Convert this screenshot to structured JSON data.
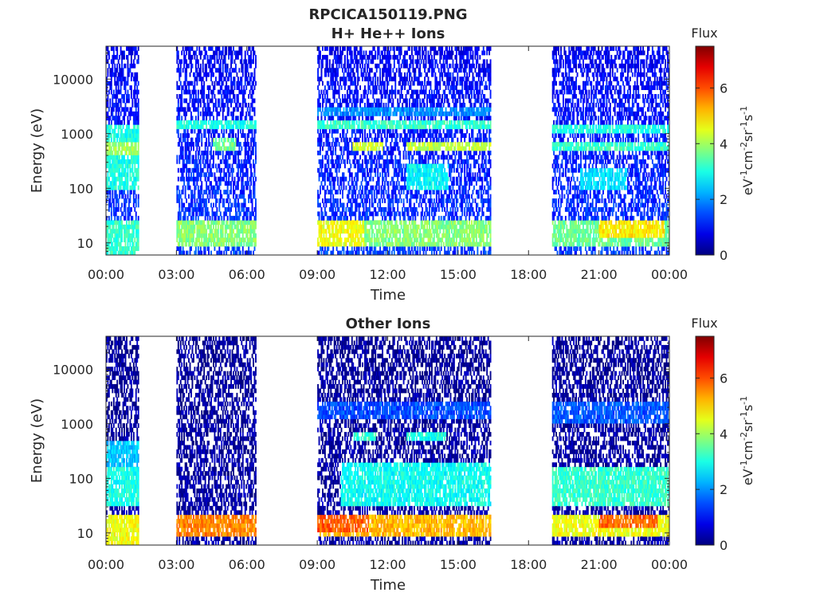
{
  "figure": {
    "file_title": "RPCICA150119.PNG"
  },
  "colorbar": {
    "title": "Flux",
    "unit_label": "eV-1cm-2sr-1s-1",
    "range": [
      0,
      7.5
    ],
    "ticks": [
      "0",
      "2",
      "4",
      "6"
    ],
    "colormap": "jet"
  },
  "chart_data": [
    {
      "type": "heatmap",
      "title": "H+ He++ Ions",
      "xlabel": "Time",
      "ylabel": "Energy (eV)",
      "xticks": [
        "00:00",
        "03:00",
        "06:00",
        "09:00",
        "12:00",
        "15:00",
        "18:00",
        "21:00",
        "00:00"
      ],
      "xlim_hours": [
        0,
        24
      ],
      "yscale": "log",
      "ylim": [
        6,
        40000
      ],
      "yticks": [
        "10",
        "100",
        "1000",
        "10000"
      ],
      "colorbar_range": [
        0,
        7.5
      ],
      "data_intervals_hours": [
        [
          0.0,
          1.4
        ],
        [
          3.0,
          6.4
        ],
        [
          9.0,
          16.4
        ],
        [
          19.0,
          24.0
        ]
      ],
      "bands": [
        {
          "t": [
            0.0,
            1.4
          ],
          "e": [
            100,
            1500
          ],
          "flux": 3.0
        },
        {
          "t": [
            0.0,
            1.4
          ],
          "e": [
            400,
            700
          ],
          "flux": 4.0
        },
        {
          "t": [
            0.0,
            1.4
          ],
          "e": [
            6,
            25
          ],
          "flux": 3.2
        },
        {
          "t": [
            3.0,
            6.4
          ],
          "e": [
            8,
            25
          ],
          "flux": 3.8
        },
        {
          "t": [
            3.0,
            6.4
          ],
          "e": [
            1200,
            1700
          ],
          "flux": 3.0
        },
        {
          "t": [
            4.5,
            5.5
          ],
          "e": [
            500,
            800
          ],
          "flux": 3.6
        },
        {
          "t": [
            9.0,
            16.4
          ],
          "e": [
            8,
            25
          ],
          "flux": 3.8
        },
        {
          "t": [
            9.0,
            11.0
          ],
          "e": [
            8,
            25
          ],
          "flux": 4.6
        },
        {
          "t": [
            9.0,
            16.4
          ],
          "e": [
            1300,
            1800
          ],
          "flux": 3.2
        },
        {
          "t": [
            9.0,
            16.4
          ],
          "e": [
            2300,
            2800
          ],
          "flux": 2.0
        },
        {
          "t": [
            10.5,
            11.8
          ],
          "e": [
            450,
            750
          ],
          "flux": 4.4
        },
        {
          "t": [
            12.8,
            16.4
          ],
          "e": [
            450,
            750
          ],
          "flux": 4.2
        },
        {
          "t": [
            12.8,
            14.6
          ],
          "e": [
            100,
            300
          ],
          "flux": 2.8
        },
        {
          "t": [
            19.0,
            24.0
          ],
          "e": [
            8,
            25
          ],
          "flux": 3.6
        },
        {
          "t": [
            21.0,
            23.8
          ],
          "e": [
            12,
            25
          ],
          "flux": 4.8
        },
        {
          "t": [
            19.0,
            24.0
          ],
          "e": [
            1000,
            1500
          ],
          "flux": 3.0
        },
        {
          "t": [
            19.0,
            24.0
          ],
          "e": [
            450,
            750
          ],
          "flux": 3.2
        },
        {
          "t": [
            20.2,
            22.2
          ],
          "e": [
            100,
            250
          ],
          "flux": 2.6
        }
      ],
      "background_flux": 1.4
    },
    {
      "type": "heatmap",
      "title": "Other Ions",
      "xlabel": "Time",
      "ylabel": "Energy (eV)",
      "xticks": [
        "00:00",
        "03:00",
        "06:00",
        "09:00",
        "12:00",
        "15:00",
        "18:00",
        "21:00",
        "00:00"
      ],
      "xlim_hours": [
        0,
        24
      ],
      "yscale": "log",
      "ylim": [
        6,
        40000
      ],
      "yticks": [
        "10",
        "100",
        "1000",
        "10000"
      ],
      "colorbar_range": [
        0,
        7.5
      ],
      "data_intervals_hours": [
        [
          0.0,
          1.4
        ],
        [
          3.0,
          6.4
        ],
        [
          9.0,
          16.4
        ],
        [
          19.0,
          24.0
        ]
      ],
      "bands": [
        {
          "t": [
            0.0,
            1.4
          ],
          "e": [
            150,
            500
          ],
          "flux": 2.4
        },
        {
          "t": [
            0.0,
            1.4
          ],
          "e": [
            30,
            150
          ],
          "flux": 3.0
        },
        {
          "t": [
            0.0,
            1.4
          ],
          "e": [
            6,
            20
          ],
          "flux": 4.6
        },
        {
          "t": [
            3.0,
            6.4
          ],
          "e": [
            8,
            22
          ],
          "flux": 5.6
        },
        {
          "t": [
            9.0,
            16.4
          ],
          "e": [
            8,
            22
          ],
          "flux": 5.2
        },
        {
          "t": [
            9.0,
            11.2
          ],
          "e": [
            10,
            22
          ],
          "flux": 5.9
        },
        {
          "t": [
            10.0,
            16.4
          ],
          "e": [
            30,
            200
          ],
          "flux": 2.9
        },
        {
          "t": [
            10.5,
            11.5
          ],
          "e": [
            500,
            700
          ],
          "flux": 3.2
        },
        {
          "t": [
            12.8,
            14.5
          ],
          "e": [
            500,
            700
          ],
          "flux": 3.0
        },
        {
          "t": [
            9.0,
            16.4
          ],
          "e": [
            1300,
            2500
          ],
          "flux": 1.5
        },
        {
          "t": [
            19.0,
            24.0
          ],
          "e": [
            8,
            22
          ],
          "flux": 4.6
        },
        {
          "t": [
            21.0,
            23.5
          ],
          "e": [
            12,
            22
          ],
          "flux": 5.8
        },
        {
          "t": [
            19.0,
            24.0
          ],
          "e": [
            30,
            150
          ],
          "flux": 3.2
        },
        {
          "t": [
            19.0,
            24.0
          ],
          "e": [
            1100,
            2500
          ],
          "flux": 1.6
        }
      ],
      "background_flux": 0.3
    }
  ]
}
